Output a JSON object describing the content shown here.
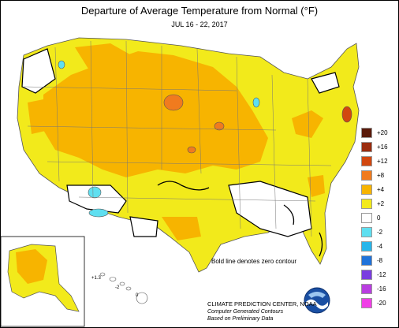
{
  "title": "Departure of Average Temperature from Normal (°F)",
  "subtitle": "JUL 16 - 22, 2017",
  "note": "Bold line denotes zero contour",
  "credit": {
    "org": "CLIMATE PREDICTION CENTER, NOAA",
    "line2": "Computer Generated Contours",
    "line3": "Based on Preliminary Data"
  },
  "legend": [
    {
      "label": "+20",
      "color": "#5a1a0a"
    },
    {
      "label": "+16",
      "color": "#9b2c0f"
    },
    {
      "label": "+12",
      "color": "#d2470f"
    },
    {
      "label": "+8",
      "color": "#f07b1e"
    },
    {
      "label": "+4",
      "color": "#f7b400"
    },
    {
      "label": "+2",
      "color": "#f2ea1b"
    },
    {
      "label": "0",
      "color": "#ffffff"
    },
    {
      "label": "-2",
      "color": "#5fdff0"
    },
    {
      "label": "-4",
      "color": "#28b5ea"
    },
    {
      "label": "-8",
      "color": "#1f72d9"
    },
    {
      "label": "-12",
      "color": "#7a3de0"
    },
    {
      "label": "-16",
      "color": "#b93ee0"
    },
    {
      "label": "-20",
      "color": "#f03ee6"
    }
  ],
  "hawaii_labels": [
    "+1.3",
    "-2",
    "0"
  ]
}
